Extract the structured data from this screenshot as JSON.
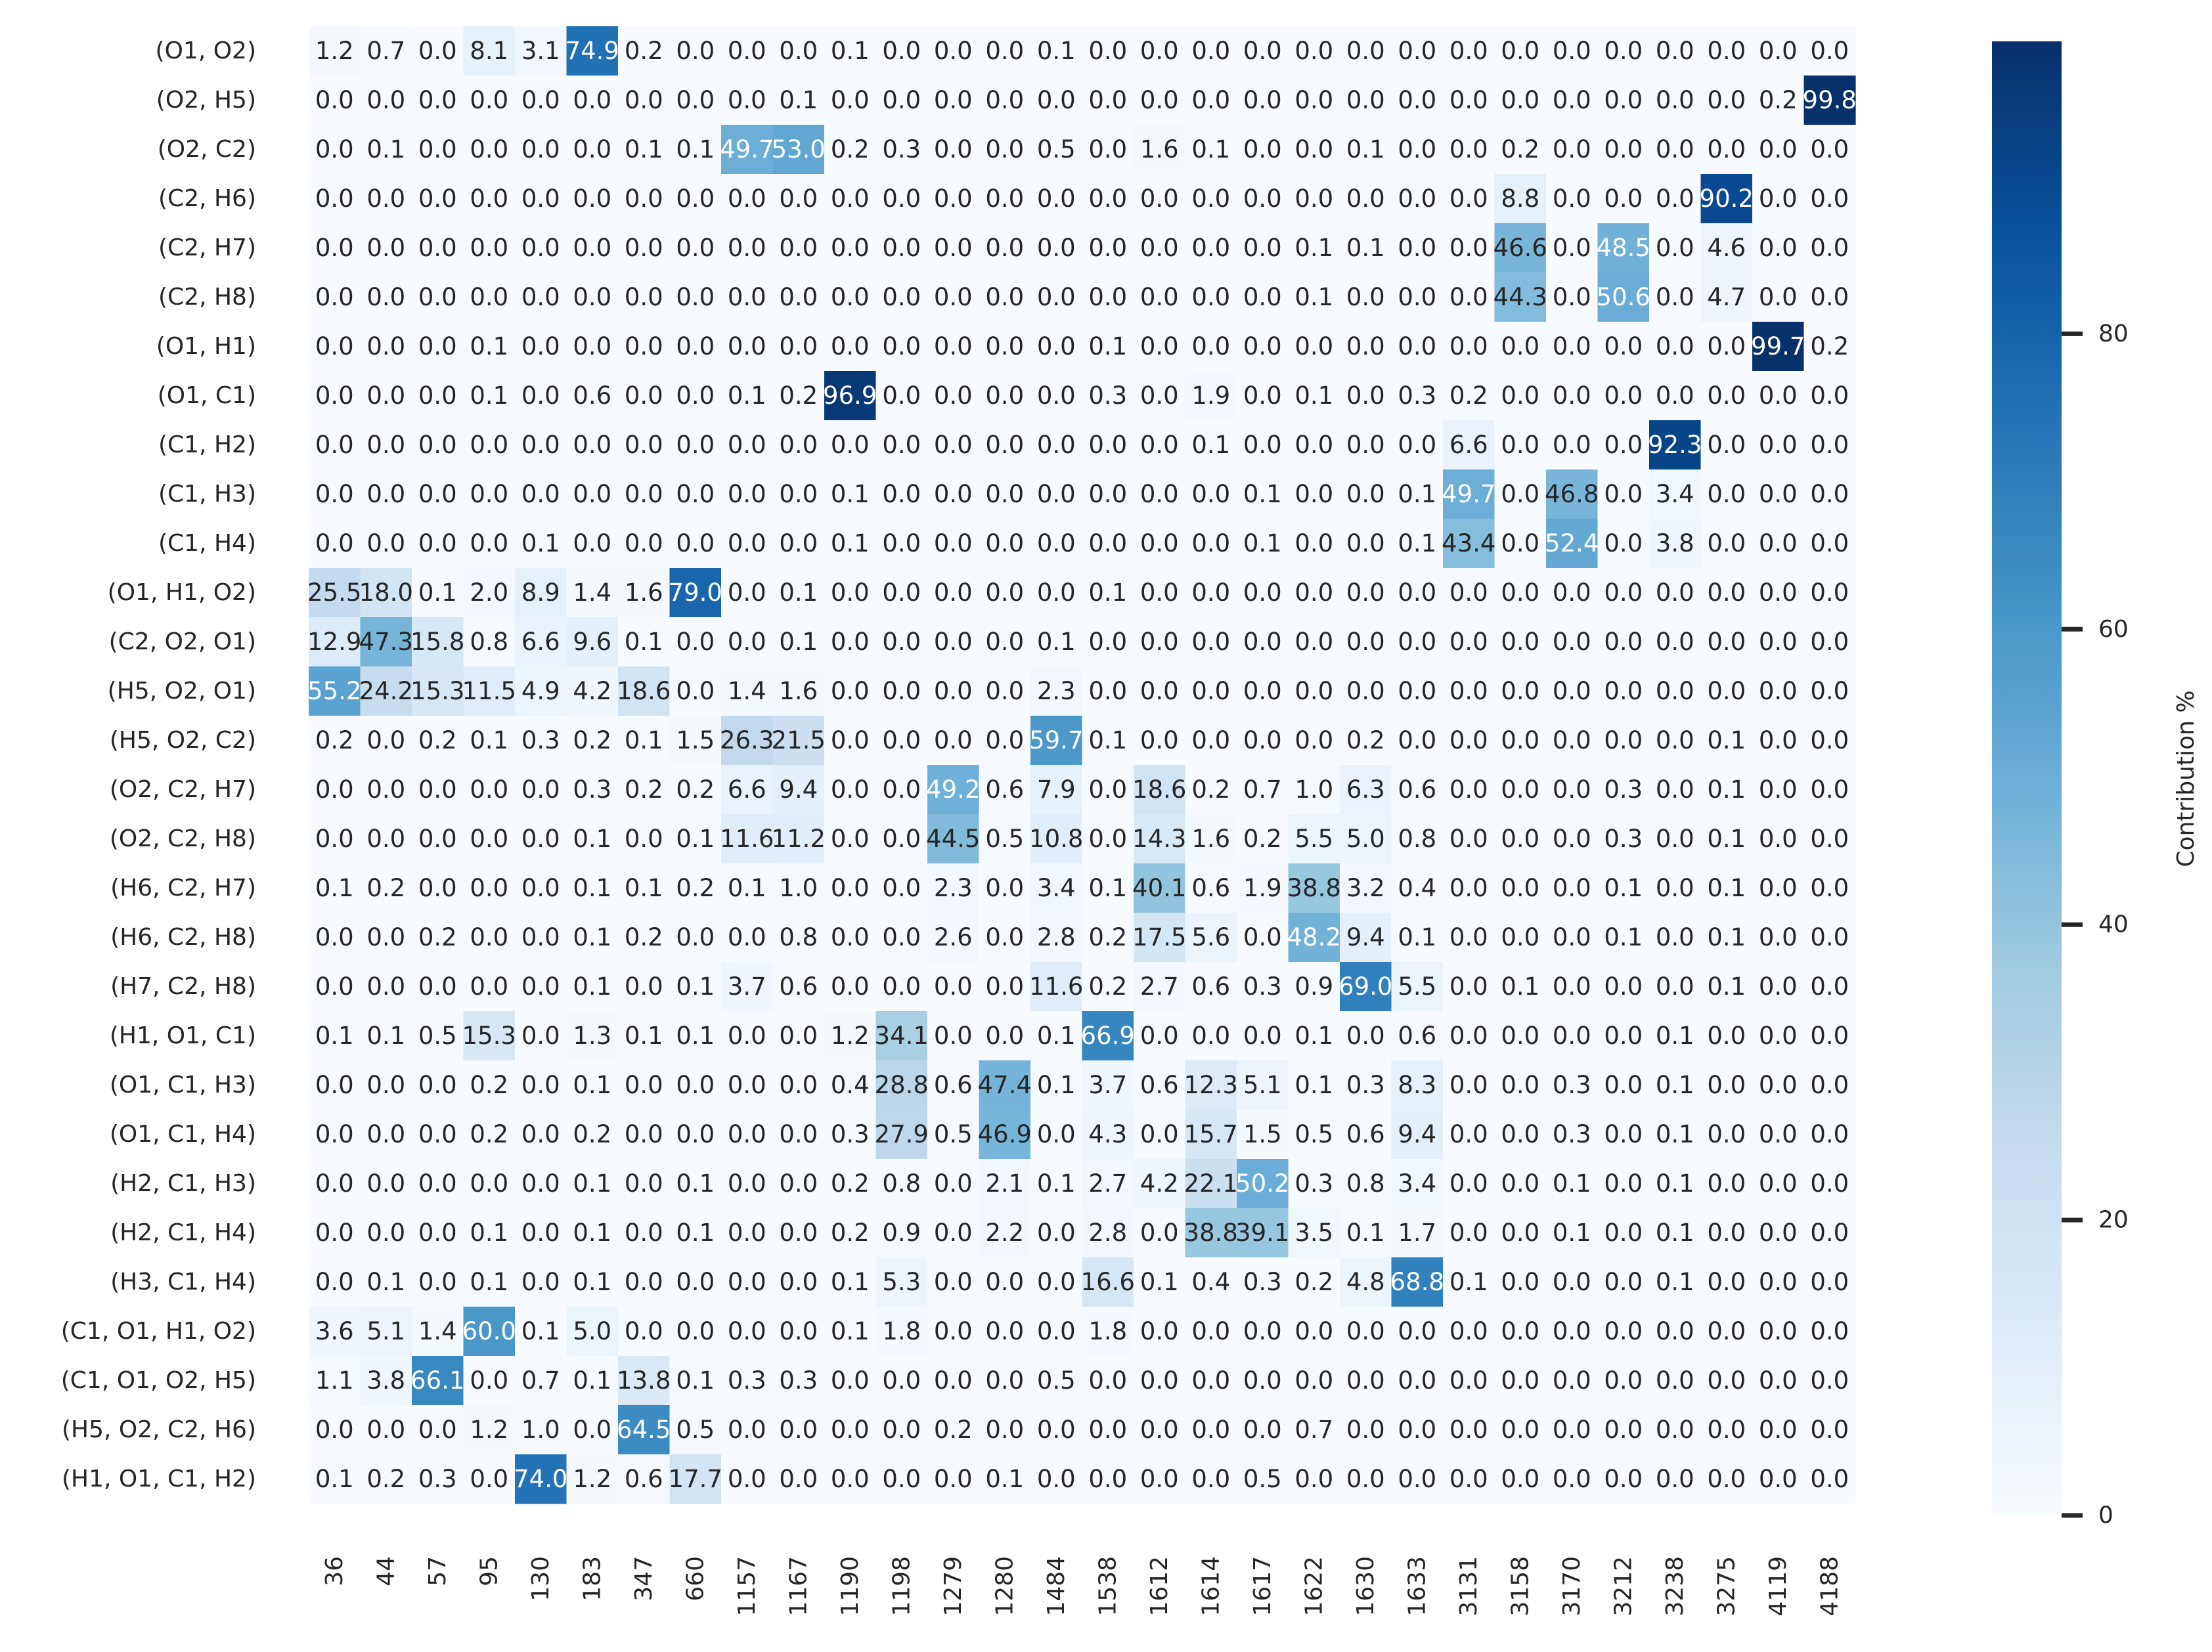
{
  "chart_data": {
    "type": "heatmap",
    "title": "",
    "xlabel": "",
    "ylabel": "",
    "colorbar": {
      "label": "Contribution %",
      "ticks": [
        0,
        20,
        40,
        60,
        80
      ],
      "range": [
        0,
        99.8
      ],
      "colormap": "Blues"
    },
    "x_categories": [
      "36",
      "44",
      "57",
      "95",
      "130",
      "183",
      "347",
      "660",
      "1157",
      "1167",
      "1190",
      "1198",
      "1279",
      "1280",
      "1484",
      "1538",
      "1612",
      "1614",
      "1617",
      "1622",
      "1630",
      "1633",
      "3131",
      "3158",
      "3170",
      "3212",
      "3238",
      "3275",
      "4119",
      "4188"
    ],
    "y_categories": [
      "(O1, O2)",
      "(O2, H5)",
      "(O2, C2)",
      "(C2, H6)",
      "(C2, H7)",
      "(C2, H8)",
      "(O1, H1)",
      "(O1, C1)",
      "(C1, H2)",
      "(C1, H3)",
      "(C1, H4)",
      "(O1, H1, O2)",
      "(C2, O2, O1)",
      "(H5, O2, O1)",
      "(H5, O2, C2)",
      "(O2, C2, H7)",
      "(O2, C2, H8)",
      "(H6, C2, H7)",
      "(H6, C2, H8)",
      "(H7, C2, H8)",
      "(H1, O1, C1)",
      "(O1, C1, H3)",
      "(O1, C1, H4)",
      "(H2, C1, H3)",
      "(H2, C1, H4)",
      "(H3, C1, H4)",
      "(C1, O1, H1, O2)",
      "(C1, O1, O2, H5)",
      "(H5, O2, C2, H6)",
      "(H1, O1, C1, H2)"
    ],
    "values": [
      [
        "1.2",
        "0.7",
        "0.0",
        "8.1",
        "3.1",
        "74.9",
        "0.2",
        "0.0",
        "0.0",
        "0.0",
        "0.1",
        "0.0",
        "0.0",
        "0.0",
        "0.1",
        "0.0",
        "0.0",
        "0.0",
        "0.0",
        "0.0",
        "0.0",
        "0.0",
        "0.0",
        "0.0",
        "0.0",
        "0.0",
        "0.0",
        "0.0",
        "0.0",
        "0.0"
      ],
      [
        "0.0",
        "0.0",
        "0.0",
        "0.0",
        "0.0",
        "0.0",
        "0.0",
        "0.0",
        "0.0",
        "0.1",
        "0.0",
        "0.0",
        "0.0",
        "0.0",
        "0.0",
        "0.0",
        "0.0",
        "0.0",
        "0.0",
        "0.0",
        "0.0",
        "0.0",
        "0.0",
        "0.0",
        "0.0",
        "0.0",
        "0.0",
        "0.0",
        "0.2",
        "99.8"
      ],
      [
        "0.0",
        "0.1",
        "0.0",
        "0.0",
        "0.0",
        "0.0",
        "0.1",
        "0.1",
        "49.7",
        "53.0",
        "0.2",
        "0.3",
        "0.0",
        "0.0",
        "0.5",
        "0.0",
        "1.6",
        "0.1",
        "0.0",
        "0.0",
        "0.1",
        "0.0",
        "0.0",
        "0.2",
        "0.0",
        "0.0",
        "0.0",
        "0.0",
        "0.0",
        "0.0"
      ],
      [
        "0.0",
        "0.0",
        "0.0",
        "0.0",
        "0.0",
        "0.0",
        "0.0",
        "0.0",
        "0.0",
        "0.0",
        "0.0",
        "0.0",
        "0.0",
        "0.0",
        "0.0",
        "0.0",
        "0.0",
        "0.0",
        "0.0",
        "0.0",
        "0.0",
        "0.0",
        "0.0",
        "8.8",
        "0.0",
        "0.0",
        "0.0",
        "90.2",
        "0.0",
        "0.0"
      ],
      [
        "0.0",
        "0.0",
        "0.0",
        "0.0",
        "0.0",
        "0.0",
        "0.0",
        "0.0",
        "0.0",
        "0.0",
        "0.0",
        "0.0",
        "0.0",
        "0.0",
        "0.0",
        "0.0",
        "0.0",
        "0.0",
        "0.0",
        "0.1",
        "0.1",
        "0.0",
        "0.0",
        "46.6",
        "0.0",
        "48.5",
        "0.0",
        "4.6",
        "0.0",
        "0.0"
      ],
      [
        "0.0",
        "0.0",
        "0.0",
        "0.0",
        "0.0",
        "0.0",
        "0.0",
        "0.0",
        "0.0",
        "0.0",
        "0.0",
        "0.0",
        "0.0",
        "0.0",
        "0.0",
        "0.0",
        "0.0",
        "0.0",
        "0.0",
        "0.1",
        "0.0",
        "0.0",
        "0.0",
        "44.3",
        "0.0",
        "50.6",
        "0.0",
        "4.7",
        "0.0",
        "0.0"
      ],
      [
        "0.0",
        "0.0",
        "0.0",
        "0.1",
        "0.0",
        "0.0",
        "0.0",
        "0.0",
        "0.0",
        "0.0",
        "0.0",
        "0.0",
        "0.0",
        "0.0",
        "0.0",
        "0.1",
        "0.0",
        "0.0",
        "0.0",
        "0.0",
        "0.0",
        "0.0",
        "0.0",
        "0.0",
        "0.0",
        "0.0",
        "0.0",
        "0.0",
        "99.7",
        "0.2"
      ],
      [
        "0.0",
        "0.0",
        "0.0",
        "0.1",
        "0.0",
        "0.6",
        "0.0",
        "0.0",
        "0.1",
        "0.2",
        "96.9",
        "0.0",
        "0.0",
        "0.0",
        "0.0",
        "0.3",
        "0.0",
        "1.9",
        "0.0",
        "0.1",
        "0.0",
        "0.3",
        "0.2",
        "0.0",
        "0.0",
        "0.0",
        "0.0",
        "0.0",
        "0.0",
        "0.0"
      ],
      [
        "0.0",
        "0.0",
        "0.0",
        "0.0",
        "0.0",
        "0.0",
        "0.0",
        "0.0",
        "0.0",
        "0.0",
        "0.0",
        "0.0",
        "0.0",
        "0.0",
        "0.0",
        "0.0",
        "0.0",
        "0.1",
        "0.0",
        "0.0",
        "0.0",
        "0.0",
        "6.6",
        "0.0",
        "0.0",
        "0.0",
        "92.3",
        "0.0",
        "0.0",
        "0.0"
      ],
      [
        "0.0",
        "0.0",
        "0.0",
        "0.0",
        "0.0",
        "0.0",
        "0.0",
        "0.0",
        "0.0",
        "0.0",
        "0.1",
        "0.0",
        "0.0",
        "0.0",
        "0.0",
        "0.0",
        "0.0",
        "0.0",
        "0.1",
        "0.0",
        "0.0",
        "0.1",
        "49.7",
        "0.0",
        "46.8",
        "0.0",
        "3.4",
        "0.0",
        "0.0",
        "0.0"
      ],
      [
        "0.0",
        "0.0",
        "0.0",
        "0.0",
        "0.1",
        "0.0",
        "0.0",
        "0.0",
        "0.0",
        "0.0",
        "0.1",
        "0.0",
        "0.0",
        "0.0",
        "0.0",
        "0.0",
        "0.0",
        "0.0",
        "0.1",
        "0.0",
        "0.0",
        "0.1",
        "43.4",
        "0.0",
        "52.4",
        "0.0",
        "3.8",
        "0.0",
        "0.0",
        "0.0"
      ],
      [
        "25.5",
        "18.0",
        "0.1",
        "2.0",
        "8.9",
        "1.4",
        "1.6",
        "79.0",
        "0.0",
        "0.1",
        "0.0",
        "0.0",
        "0.0",
        "0.0",
        "0.0",
        "0.1",
        "0.0",
        "0.0",
        "0.0",
        "0.0",
        "0.0",
        "0.0",
        "0.0",
        "0.0",
        "0.0",
        "0.0",
        "0.0",
        "0.0",
        "0.0",
        "0.0"
      ],
      [
        "12.9",
        "47.3",
        "15.8",
        "0.8",
        "6.6",
        "9.6",
        "0.1",
        "0.0",
        "0.0",
        "0.1",
        "0.0",
        "0.0",
        "0.0",
        "0.0",
        "0.1",
        "0.0",
        "0.0",
        "0.0",
        "0.0",
        "0.0",
        "0.0",
        "0.0",
        "0.0",
        "0.0",
        "0.0",
        "0.0",
        "0.0",
        "0.0",
        "0.0",
        "0.0"
      ],
      [
        "55.2",
        "24.2",
        "15.3",
        "11.5",
        "4.9",
        "4.2",
        "18.6",
        "0.0",
        "1.4",
        "1.6",
        "0.0",
        "0.0",
        "0.0",
        "0.0",
        "2.3",
        "0.0",
        "0.0",
        "0.0",
        "0.0",
        "0.0",
        "0.0",
        "0.0",
        "0.0",
        "0.0",
        "0.0",
        "0.0",
        "0.0",
        "0.0",
        "0.0",
        "0.0"
      ],
      [
        "0.2",
        "0.0",
        "0.2",
        "0.1",
        "0.3",
        "0.2",
        "0.1",
        "1.5",
        "26.3",
        "21.5",
        "0.0",
        "0.0",
        "0.0",
        "0.0",
        "59.7",
        "0.1",
        "0.0",
        "0.0",
        "0.0",
        "0.0",
        "0.2",
        "0.0",
        "0.0",
        "0.0",
        "0.0",
        "0.0",
        "0.0",
        "0.1",
        "0.0",
        "0.0"
      ],
      [
        "0.0",
        "0.0",
        "0.0",
        "0.0",
        "0.0",
        "0.3",
        "0.2",
        "0.2",
        "6.6",
        "9.4",
        "0.0",
        "0.0",
        "49.2",
        "0.6",
        "7.9",
        "0.0",
        "18.6",
        "0.2",
        "0.7",
        "1.0",
        "6.3",
        "0.6",
        "0.0",
        "0.0",
        "0.0",
        "0.3",
        "0.0",
        "0.1",
        "0.0",
        "0.0"
      ],
      [
        "0.0",
        "0.0",
        "0.0",
        "0.0",
        "0.0",
        "0.1",
        "0.0",
        "0.1",
        "11.6",
        "11.2",
        "0.0",
        "0.0",
        "44.5",
        "0.5",
        "10.8",
        "0.0",
        "14.3",
        "1.6",
        "0.2",
        "5.5",
        "5.0",
        "0.8",
        "0.0",
        "0.0",
        "0.0",
        "0.3",
        "0.0",
        "0.1",
        "0.0",
        "0.0"
      ],
      [
        "0.1",
        "0.2",
        "0.0",
        "0.0",
        "0.0",
        "0.1",
        "0.1",
        "0.2",
        "0.1",
        "1.0",
        "0.0",
        "0.0",
        "2.3",
        "0.0",
        "3.4",
        "0.1",
        "40.1",
        "0.6",
        "1.9",
        "38.8",
        "3.2",
        "0.4",
        "0.0",
        "0.0",
        "0.0",
        "0.1",
        "0.0",
        "0.1",
        "0.0",
        "0.0"
      ],
      [
        "0.0",
        "0.0",
        "0.2",
        "0.0",
        "0.0",
        "0.1",
        "0.2",
        "0.0",
        "0.0",
        "0.8",
        "0.0",
        "0.0",
        "2.6",
        "0.0",
        "2.8",
        "0.2",
        "17.5",
        "5.6",
        "0.0",
        "48.2",
        "9.4",
        "0.1",
        "0.0",
        "0.0",
        "0.0",
        "0.1",
        "0.0",
        "0.1",
        "0.0",
        "0.0"
      ],
      [
        "0.0",
        "0.0",
        "0.0",
        "0.0",
        "0.0",
        "0.1",
        "0.0",
        "0.1",
        "3.7",
        "0.6",
        "0.0",
        "0.0",
        "0.0",
        "0.0",
        "11.6",
        "0.2",
        "2.7",
        "0.6",
        "0.3",
        "0.9",
        "69.0",
        "5.5",
        "0.0",
        "0.1",
        "0.0",
        "0.0",
        "0.0",
        "0.1",
        "0.0",
        "0.0"
      ],
      [
        "0.1",
        "0.1",
        "0.5",
        "15.3",
        "0.0",
        "1.3",
        "0.1",
        "0.1",
        "0.0",
        "0.0",
        "1.2",
        "34.1",
        "0.0",
        "0.0",
        "0.1",
        "66.9",
        "0.0",
        "0.0",
        "0.0",
        "0.1",
        "0.0",
        "0.6",
        "0.0",
        "0.0",
        "0.0",
        "0.0",
        "0.1",
        "0.0",
        "0.0",
        "0.0"
      ],
      [
        "0.0",
        "0.0",
        "0.0",
        "0.2",
        "0.0",
        "0.1",
        "0.0",
        "0.0",
        "0.0",
        "0.0",
        "0.4",
        "28.8",
        "0.6",
        "47.4",
        "0.1",
        "3.7",
        "0.6",
        "12.3",
        "5.1",
        "0.1",
        "0.3",
        "8.3",
        "0.0",
        "0.0",
        "0.3",
        "0.0",
        "0.1",
        "0.0",
        "0.0",
        "0.0"
      ],
      [
        "0.0",
        "0.0",
        "0.0",
        "0.2",
        "0.0",
        "0.2",
        "0.0",
        "0.0",
        "0.0",
        "0.0",
        "0.3",
        "27.9",
        "0.5",
        "46.9",
        "0.0",
        "4.3",
        "0.0",
        "15.7",
        "1.5",
        "0.5",
        "0.6",
        "9.4",
        "0.0",
        "0.0",
        "0.3",
        "0.0",
        "0.1",
        "0.0",
        "0.0",
        "0.0"
      ],
      [
        "0.0",
        "0.0",
        "0.0",
        "0.0",
        "0.0",
        "0.1",
        "0.0",
        "0.1",
        "0.0",
        "0.0",
        "0.2",
        "0.8",
        "0.0",
        "2.1",
        "0.1",
        "2.7",
        "4.2",
        "22.1",
        "50.2",
        "0.3",
        "0.8",
        "3.4",
        "0.0",
        "0.0",
        "0.1",
        "0.0",
        "0.1",
        "0.0",
        "0.0",
        "0.0"
      ],
      [
        "0.0",
        "0.0",
        "0.0",
        "0.1",
        "0.0",
        "0.1",
        "0.0",
        "0.1",
        "0.0",
        "0.0",
        "0.2",
        "0.9",
        "0.0",
        "2.2",
        "0.0",
        "2.8",
        "0.0",
        "38.8",
        "39.1",
        "3.5",
        "0.1",
        "1.7",
        "0.0",
        "0.0",
        "0.1",
        "0.0",
        "0.1",
        "0.0",
        "0.0",
        "0.0"
      ],
      [
        "0.0",
        "0.1",
        "0.0",
        "0.1",
        "0.0",
        "0.1",
        "0.0",
        "0.0",
        "0.0",
        "0.0",
        "0.1",
        "5.3",
        "0.0",
        "0.0",
        "0.0",
        "16.6",
        "0.1",
        "0.4",
        "0.3",
        "0.2",
        "4.8",
        "68.8",
        "0.1",
        "0.0",
        "0.0",
        "0.0",
        "0.1",
        "0.0",
        "0.0",
        "0.0"
      ],
      [
        "3.6",
        "5.1",
        "1.4",
        "60.0",
        "0.1",
        "5.0",
        "0.0",
        "0.0",
        "0.0",
        "0.0",
        "0.1",
        "1.8",
        "0.0",
        "0.0",
        "0.0",
        "1.8",
        "0.0",
        "0.0",
        "0.0",
        "0.0",
        "0.0",
        "0.0",
        "0.0",
        "0.0",
        "0.0",
        "0.0",
        "0.0",
        "0.0",
        "0.0",
        "0.0"
      ],
      [
        "1.1",
        "3.8",
        "66.1",
        "0.0",
        "0.7",
        "0.1",
        "13.8",
        "0.1",
        "0.3",
        "0.3",
        "0.0",
        "0.0",
        "0.0",
        "0.0",
        "0.5",
        "0.0",
        "0.0",
        "0.0",
        "0.0",
        "0.0",
        "0.0",
        "0.0",
        "0.0",
        "0.0",
        "0.0",
        "0.0",
        "0.0",
        "0.0",
        "0.0",
        "0.0"
      ],
      [
        "0.0",
        "0.0",
        "0.0",
        "1.2",
        "1.0",
        "0.0",
        "64.5",
        "0.5",
        "0.0",
        "0.0",
        "0.0",
        "0.0",
        "0.2",
        "0.0",
        "0.0",
        "0.0",
        "0.0",
        "0.0",
        "0.0",
        "0.7",
        "0.0",
        "0.0",
        "0.0",
        "0.0",
        "0.0",
        "0.0",
        "0.0",
        "0.0",
        "0.0",
        "0.0"
      ],
      [
        "0.1",
        "0.2",
        "0.3",
        "0.0",
        "74.0",
        "1.2",
        "0.6",
        "17.7",
        "0.0",
        "0.0",
        "0.0",
        "0.0",
        "0.0",
        "0.1",
        "0.0",
        "0.0",
        "0.0",
        "0.0",
        "0.5",
        "0.0",
        "0.0",
        "0.0",
        "0.0",
        "0.0",
        "0.0",
        "0.0",
        "0.0",
        "0.0",
        "0.0",
        "0.0"
      ]
    ]
  }
}
